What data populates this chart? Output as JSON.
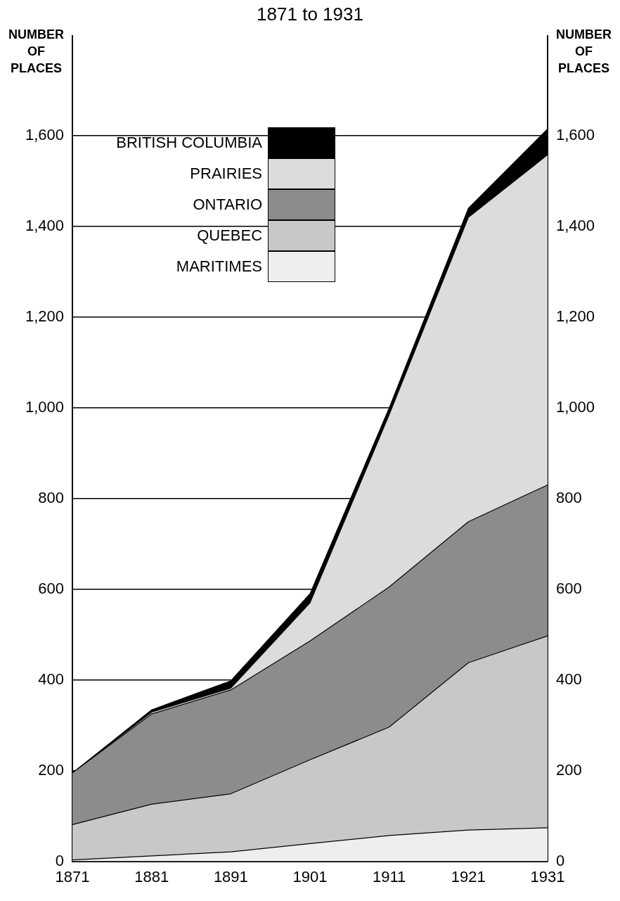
{
  "chart_data": {
    "type": "area",
    "title": "1871 to 1931",
    "ylabel": "NUMBER OF PLACES",
    "y2label": "NUMBER OF PLACES",
    "categories": [
      "1871",
      "1881",
      "1891",
      "1901",
      "1911",
      "1921",
      "1931"
    ],
    "stacked": true,
    "grid": "y",
    "legend": "top left",
    "ylim": [
      0,
      1820
    ],
    "yticks": [
      0,
      200,
      400,
      600,
      800,
      {
        "value": 1000,
        "label": "1,000"
      },
      {
        "value": 1200,
        "label": "1,200"
      },
      {
        "value": 1400,
        "label": "1,400"
      },
      {
        "value": 1600,
        "label": "1,600"
      }
    ],
    "y2lim": [
      0,
      1820
    ],
    "y2ticks": [
      0,
      200,
      400,
      600,
      800,
      {
        "value": 1000,
        "label": "1,000"
      },
      {
        "value": 1200,
        "label": "1,200"
      },
      {
        "value": 1400,
        "label": "1,400"
      },
      {
        "value": 1600,
        "label": "1,600"
      }
    ],
    "series": [
      {
        "name": "MARITIMES",
        "color": "#eeeeee",
        "values": [
          3,
          12,
          21,
          39,
          57,
          69,
          74
        ]
      },
      {
        "name": "QUEBEC",
        "color": "#c8c8c8",
        "values": [
          78,
          114,
          128,
          185,
          239,
          369,
          423
        ]
      },
      {
        "name": "ONTARIO",
        "color": "#8c8c8c",
        "values": [
          114,
          199,
          229,
          262,
          309,
          311,
          333
        ]
      },
      {
        "name": "PRAIRIES",
        "color": "#dcdcdc",
        "values": [
          0,
          4,
          4,
          84,
          380,
          671,
          728
        ]
      },
      {
        "name": "BRITISH COLUMBIA",
        "color": "#000000",
        "values": [
          0,
          5,
          16,
          20,
          15,
          20,
          57
        ]
      }
    ]
  }
}
